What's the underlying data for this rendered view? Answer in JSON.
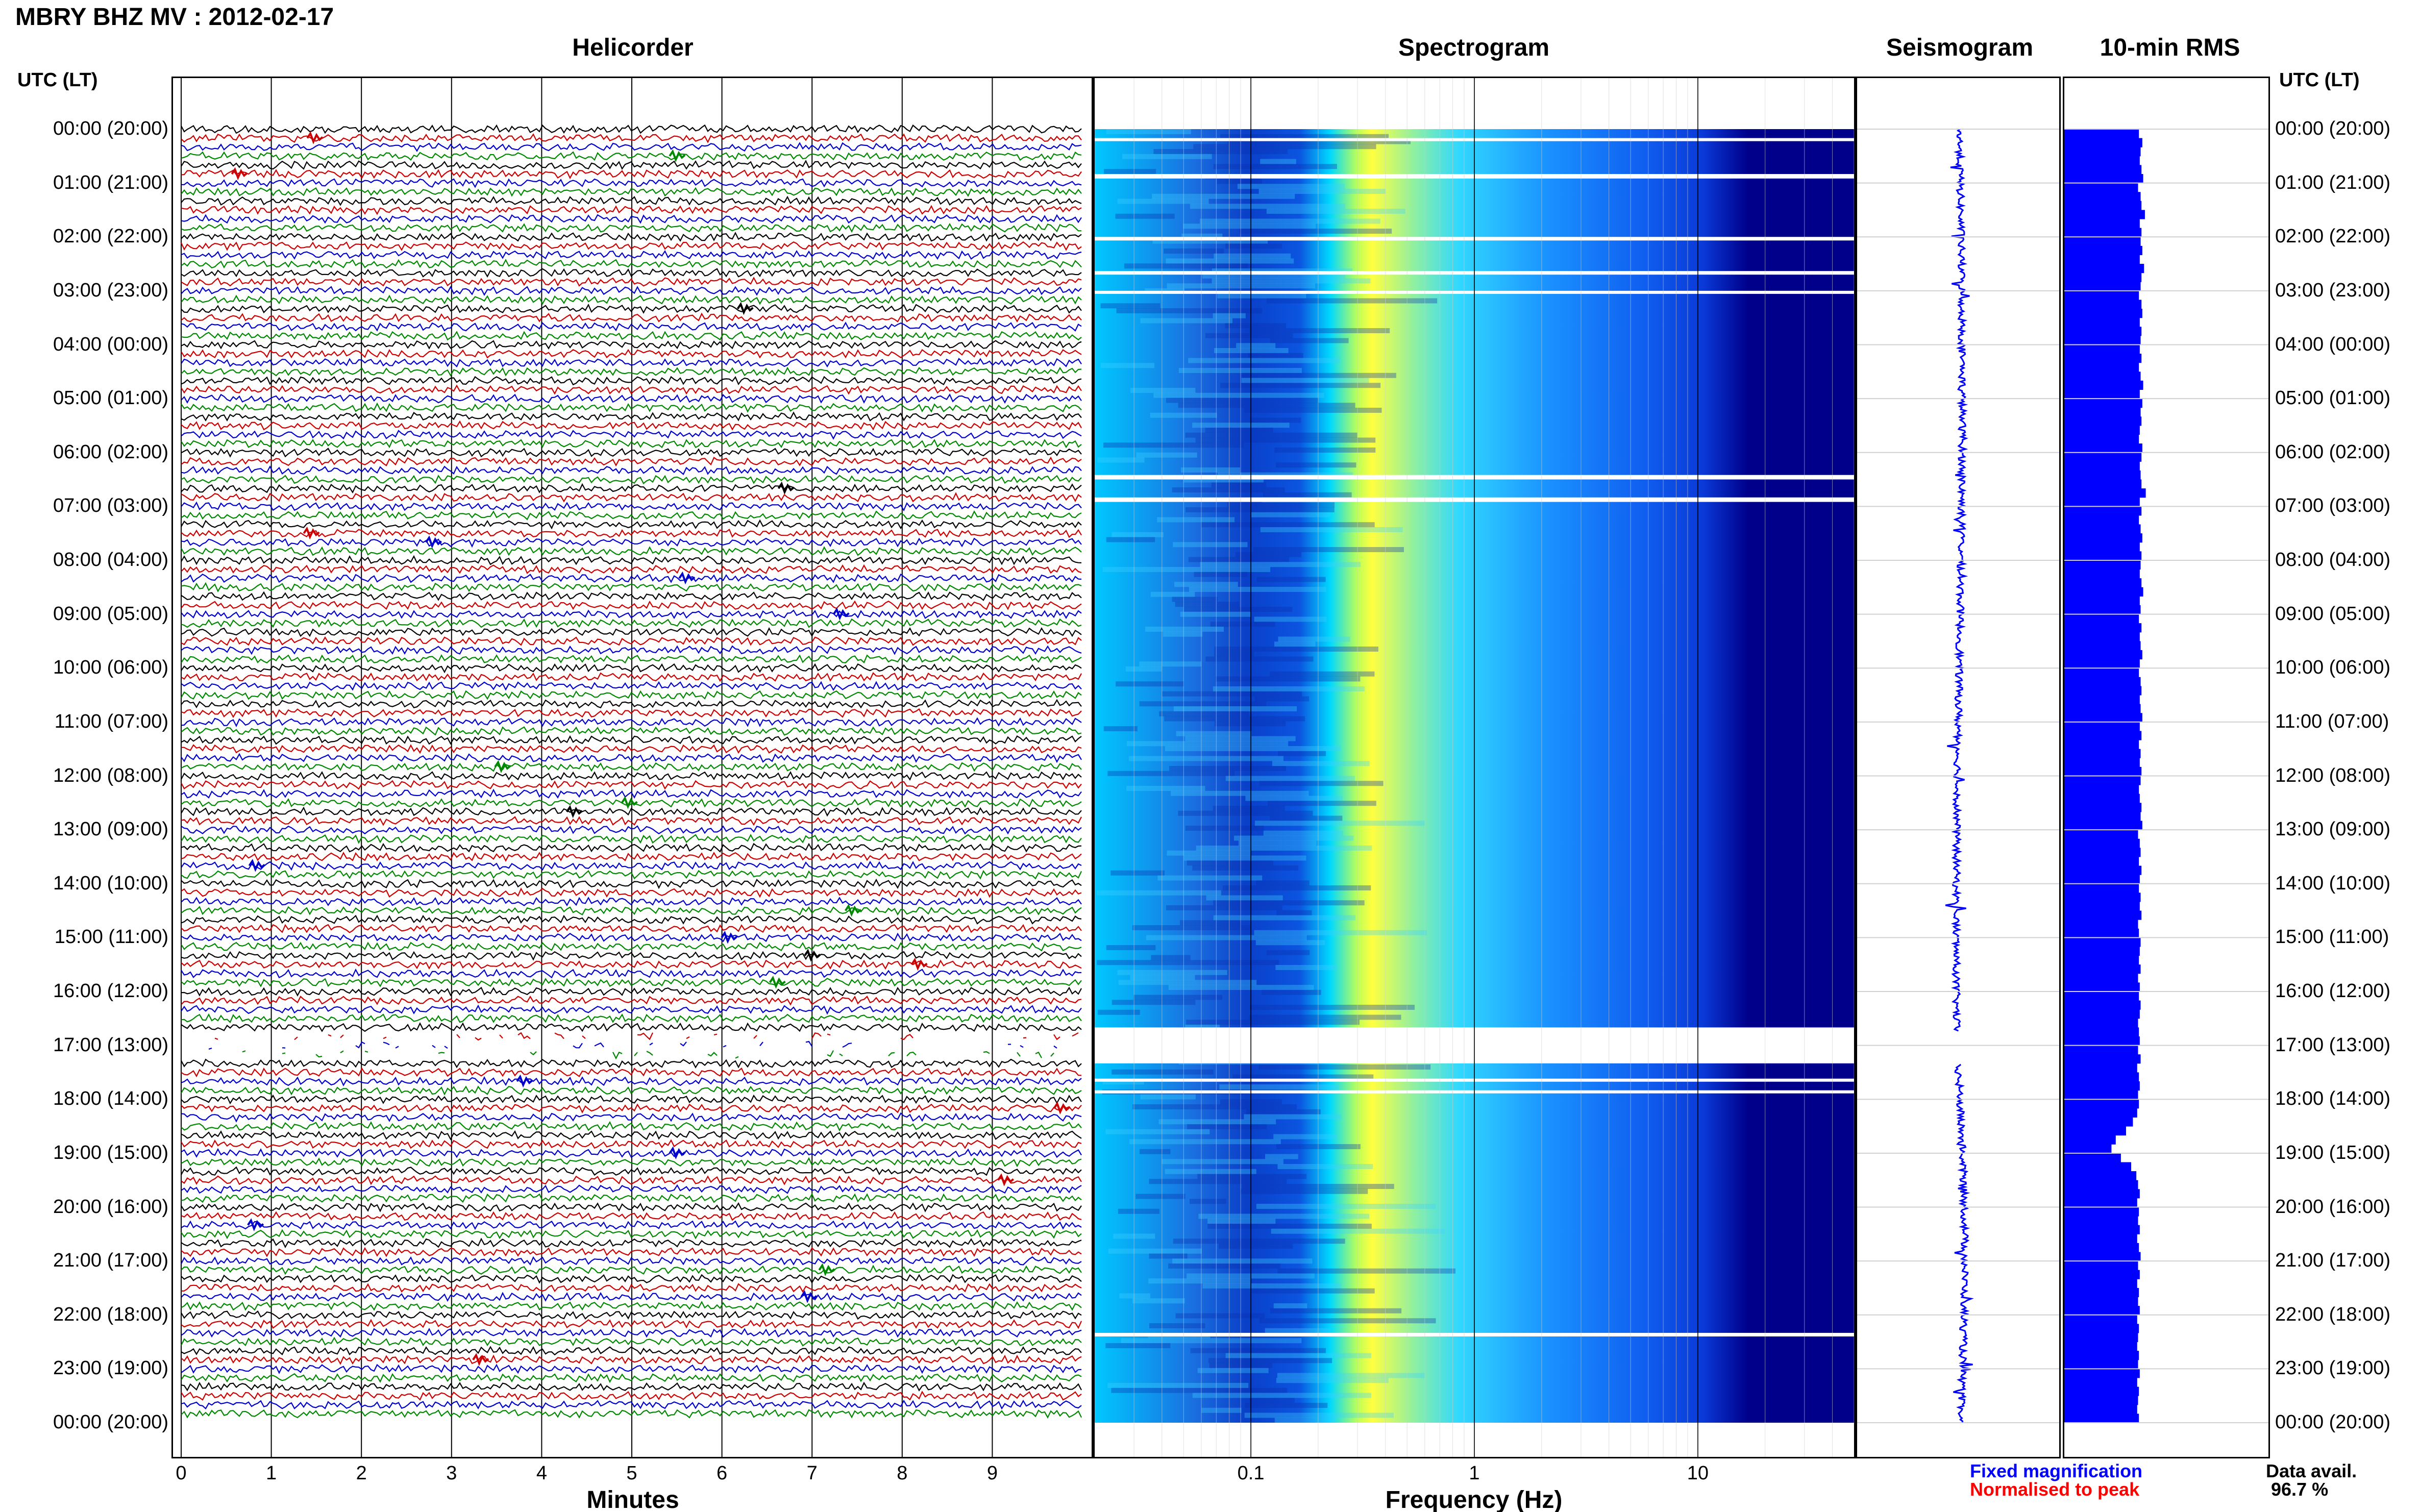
{
  "header": {
    "title": "MBRY BHZ MV : 2012-02-17",
    "panels": [
      "Helicorder",
      "Spectrogram",
      "Seismogram",
      "10-min RMS"
    ],
    "utc_label_left": "UTC (LT)",
    "utc_label_right": "UTC (LT)"
  },
  "time_labels": [
    "00:00 (20:00)",
    "01:00 (21:00)",
    "02:00 (22:00)",
    "03:00 (23:00)",
    "04:00 (00:00)",
    "05:00 (01:00)",
    "06:00 (02:00)",
    "07:00 (03:00)",
    "08:00 (04:00)",
    "09:00 (05:00)",
    "10:00 (06:00)",
    "11:00 (07:00)",
    "12:00 (08:00)",
    "13:00 (09:00)",
    "14:00 (10:00)",
    "15:00 (11:00)",
    "16:00 (12:00)",
    "17:00 (13:00)",
    "18:00 (14:00)",
    "19:00 (15:00)",
    "20:00 (16:00)",
    "21:00 (17:00)",
    "22:00 (18:00)",
    "23:00 (19:00)",
    "00:00 (20:00)"
  ],
  "helicorder": {
    "xlabel": "Minutes",
    "minute_ticks": [
      "0",
      "1",
      "2",
      "3",
      "4",
      "5",
      "6",
      "7",
      "8",
      "9"
    ]
  },
  "spectrogram": {
    "xlabel": "Frequency (Hz)",
    "freq_ticks": [
      "0.1",
      "1",
      "10"
    ]
  },
  "legend": {
    "fixed": "Fixed magnification",
    "normalised": "Normalised to peak",
    "avail_label": "Data avail.",
    "avail_value": "96.7 %"
  },
  "colors": {
    "trace_colors": [
      "#000000",
      "#cc0000",
      "#0000cc",
      "#008800"
    ],
    "fixed_mag": "#0000ff",
    "normalised": "#ff0000",
    "rms_bar": "#0000ff",
    "spectrogram_scale": [
      "#00008b",
      "#0000ff",
      "#0080ff",
      "#00e5ff",
      "#ffff40"
    ]
  },
  "chart_data": [
    {
      "type": "line",
      "title": "Helicorder",
      "xlabel": "Minutes",
      "x_range": [
        0,
        10
      ],
      "lines_per_hour": 6,
      "traces": 144,
      "time_range_utc": [
        "00:00",
        "24:00"
      ],
      "data_gaps_utc": [
        [
          "16:50",
          "17:20"
        ]
      ],
      "grid": true
    },
    {
      "type": "heatmap",
      "title": "Spectrogram",
      "xlabel": "Frequency (Hz)",
      "x_scale": "log",
      "x_range": [
        0.02,
        50
      ],
      "x_ticks": [
        0.1,
        1,
        10
      ],
      "time_range_utc": [
        "00:00",
        "24:00"
      ],
      "peak_energy_band_hz": [
        0.2,
        0.35
      ],
      "data_gaps_utc": [
        [
          "00:10",
          "00:12"
        ],
        [
          "00:50",
          "00:55"
        ],
        [
          "02:00",
          "02:04"
        ],
        [
          "02:38",
          "02:42"
        ],
        [
          "03:00",
          "03:03"
        ],
        [
          "06:25",
          "06:30"
        ],
        [
          "06:50",
          "06:55"
        ],
        [
          "16:40",
          "17:20"
        ],
        [
          "17:37",
          "17:40"
        ],
        [
          "17:50",
          "17:53"
        ],
        [
          "22:20",
          "22:24"
        ]
      ]
    },
    {
      "type": "line",
      "title": "Seismogram",
      "time_range_utc": [
        "00:00",
        "24:00"
      ],
      "data_gaps_utc": [
        [
          "16:45",
          "17:20"
        ]
      ]
    },
    {
      "type": "bar",
      "title": "10-min RMS",
      "bin_minutes": 10,
      "categories_count": 144,
      "values": [
        0.87,
        0.91,
        0.89,
        0.88,
        0.9,
        0.92,
        0.86,
        0.89,
        0.9,
        0.94,
        0.88,
        0.9,
        0.89,
        0.91,
        0.88,
        0.93,
        0.9,
        0.89,
        0.87,
        0.9,
        0.91,
        0.88,
        0.9,
        0.89,
        0.88,
        0.9,
        0.87,
        0.89,
        0.92,
        0.88,
        0.91,
        0.89,
        0.9,
        0.88,
        0.87,
        0.91,
        0.9,
        0.88,
        0.89,
        0.9,
        0.95,
        0.88,
        0.9,
        0.87,
        0.89,
        0.91,
        0.88,
        0.9,
        0.89,
        0.88,
        0.9,
        0.92,
        0.88,
        0.89,
        0.87,
        0.9,
        0.88,
        0.89,
        0.91,
        0.88,
        0.87,
        0.89,
        0.9,
        0.88,
        0.89,
        0.91,
        0.88,
        0.9,
        0.87,
        0.89,
        0.88,
        0.9,
        0.89,
        0.87,
        0.88,
        0.9,
        0.89,
        0.91,
        0.86,
        0.88,
        0.89,
        0.87,
        0.9,
        0.88,
        0.87,
        0.89,
        0.88,
        0.9,
        0.86,
        0.87,
        0.89,
        0.88,
        0.87,
        0.89,
        0.86,
        0.88,
        0.87,
        0.89,
        0.88,
        0.86,
        0.87,
        0.88,
        0.86,
        0.89,
        0.85,
        0.87,
        0.88,
        0.86,
        0.87,
        0.85,
        0.8,
        0.72,
        0.6,
        0.55,
        0.66,
        0.78,
        0.84,
        0.86,
        0.88,
        0.85,
        0.87,
        0.86,
        0.88,
        0.85,
        0.87,
        0.89,
        0.86,
        0.88,
        0.85,
        0.87,
        0.86,
        0.88,
        0.85,
        0.87,
        0.86,
        0.85,
        0.87,
        0.86,
        0.88,
        0.85,
        0.87,
        0.86,
        0.85,
        0.87
      ]
    }
  ]
}
